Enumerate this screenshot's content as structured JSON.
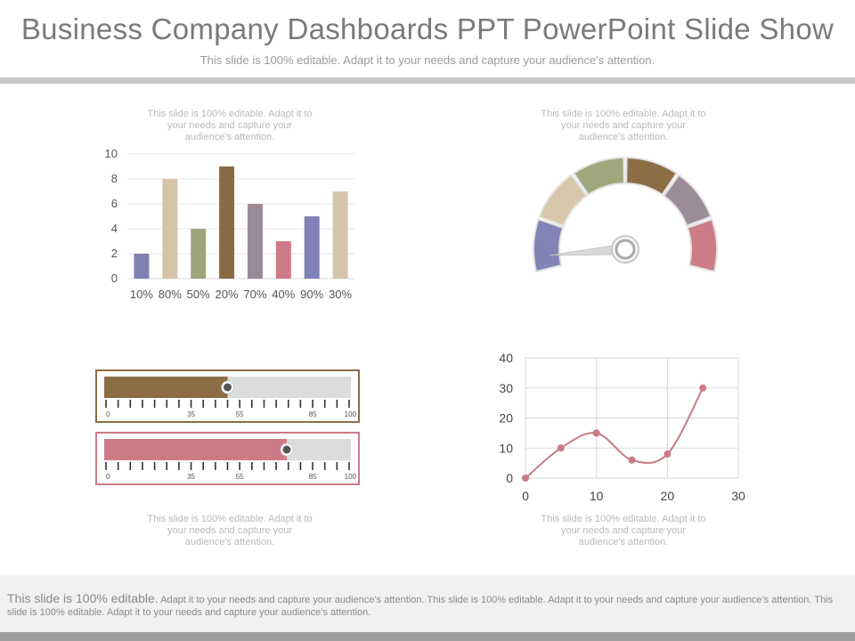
{
  "title": "Business Company Dashboards PPT PowerPoint Slide Show",
  "subtitle": "This slide is 100% editable. Adapt it to your needs and capture your audience's attention.",
  "captions": {
    "bar": "This slide is 100% editable. Adapt it to your needs and capture your audience's attention.",
    "gauge": "This slide is 100% editable. Adapt it to your needs and capture your audience's attention.",
    "progress": "This slide is 100% editable. Adapt it to your needs and capture your audience's attention.",
    "line": "This slide is 100% editable. Adapt it to your needs and capture your audience's attention."
  },
  "footer": {
    "lead": "This slide is 100% editable.",
    "text": "Adapt it to your needs and capture your audience’s attention. This slide is 100% editable. Adapt it to your needs and capture your audience’s attention. This slide is 100% editable. Adapt it to your needs and capture your audience’s attention."
  },
  "chart_data": [
    {
      "type": "bar",
      "categories": [
        "10%",
        "80%",
        "50%",
        "20%",
        "70%",
        "40%",
        "90%",
        "30%"
      ],
      "values": [
        2,
        8,
        4,
        9,
        6,
        3,
        5,
        7
      ],
      "colors": [
        "#7f80b3",
        "#d6c4a8",
        "#9da479",
        "#8b6c45",
        "#9a8a96",
        "#cd7b86",
        "#7f80b3",
        "#d6c4a8"
      ],
      "ylim": [
        0,
        10
      ],
      "yticks": [
        0,
        2,
        4,
        6,
        8,
        10
      ],
      "grid": true
    },
    {
      "type": "gauge",
      "segments": [
        {
          "color": "#8384b5"
        },
        {
          "color": "#d8c7aa"
        },
        {
          "color": "#a1a77c"
        },
        {
          "color": "#8c6d46"
        },
        {
          "color": "#9b8c98"
        },
        {
          "color": "#cd7c87"
        }
      ],
      "needle_fraction": 0.05
    },
    {
      "type": "progress",
      "scale_labels": [
        "0",
        "35",
        "55",
        "85",
        "100"
      ],
      "bars": [
        {
          "value": 50,
          "color": "#8c6d46"
        },
        {
          "value": 74,
          "color": "#cd7c87"
        }
      ]
    },
    {
      "type": "line",
      "x": [
        0,
        5,
        10,
        15,
        20,
        25
      ],
      "y": [
        0,
        10,
        15,
        6,
        8,
        30
      ],
      "color": "#c97b85",
      "xlim": [
        0,
        30
      ],
      "ylim": [
        0,
        40
      ],
      "xticks": [
        0,
        10,
        20,
        30
      ],
      "yticks": [
        0,
        10,
        20,
        30,
        40
      ],
      "grid": true
    }
  ]
}
